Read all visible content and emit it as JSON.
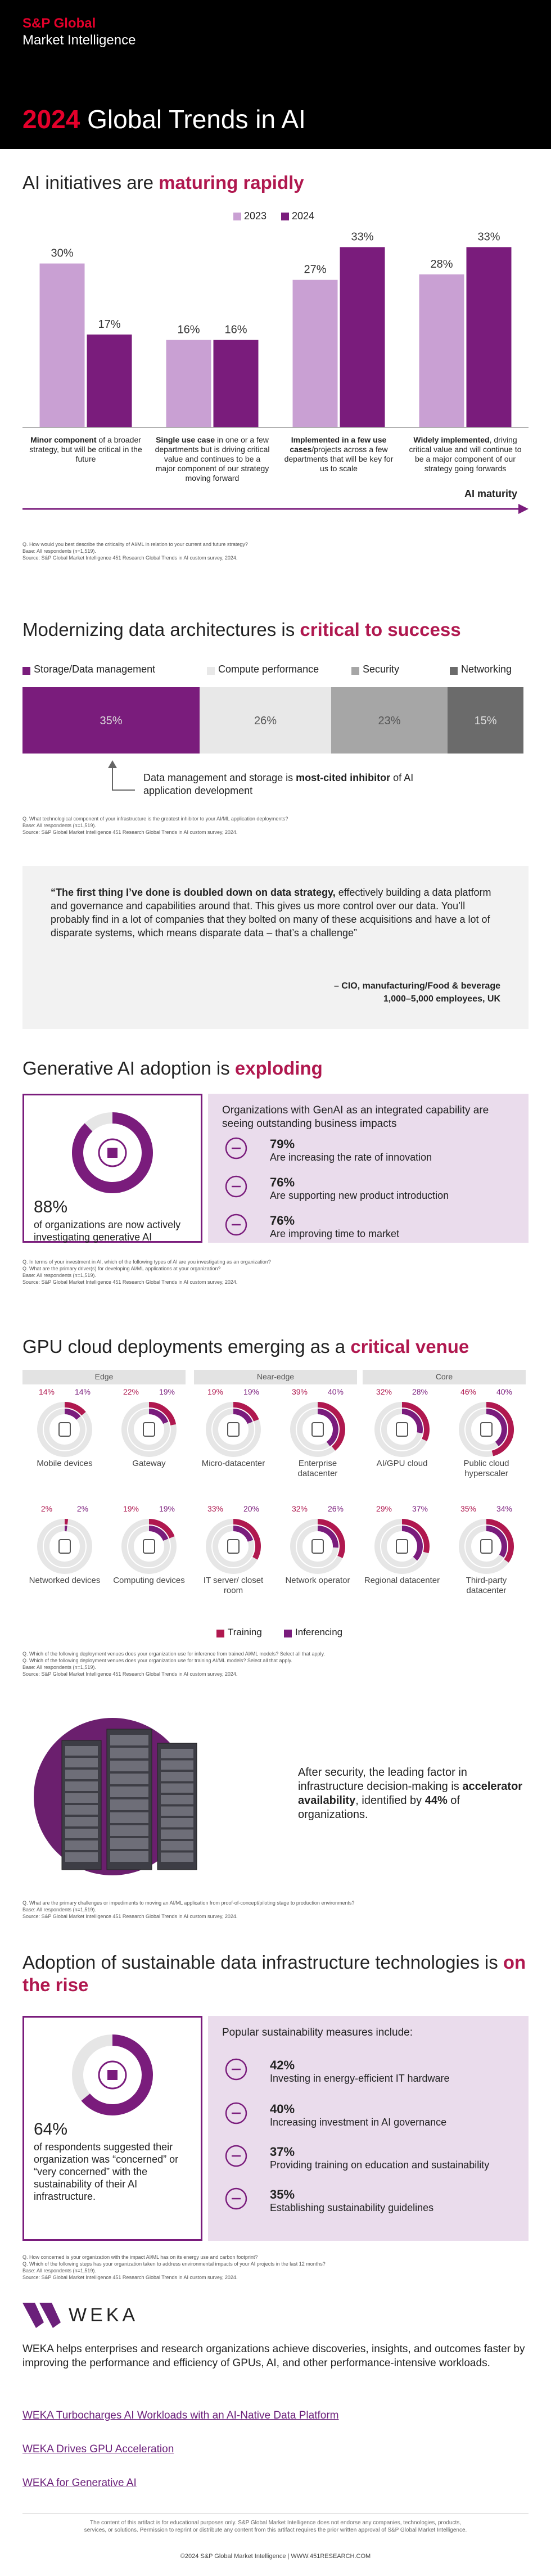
{
  "header": {
    "brand": "S&P Global",
    "subbrand": "Market Intelligence",
    "title_year": "2024",
    "title": "Global Trends in AI"
  },
  "chart_data": [
    {
      "type": "bar",
      "title": "AI initiatives are ",
      "title_highlight": "maturing rapidly",
      "categories": [
        {
          "bold": "Minor component",
          "rest": " of a broader strategy, but will be critical in the future"
        },
        {
          "bold": "Single use case",
          "rest": " in one or a few departments but is driving critical value and continues to be a major component of our strategy moving forward"
        },
        {
          "bold": "Implemented in a few use cases",
          "rest": "/projects across a few departments that will be key for us to scale"
        },
        {
          "bold": "Widely implemented",
          "rest": ", driving critical value and will continue to be a major component of our strategy going forwards"
        }
      ],
      "series": [
        {
          "name": "2023",
          "color": "#c9a0d3",
          "values": [
            30,
            16,
            27,
            28
          ],
          "value_labels": [
            "30%",
            "16%",
            "27%",
            "28%"
          ]
        },
        {
          "name": "2024",
          "color": "#7a1c7c",
          "values": [
            17,
            16,
            33,
            33
          ],
          "value_labels": [
            "17%",
            "16%",
            "33%",
            "33%"
          ]
        }
      ],
      "ylim": [
        0,
        35
      ],
      "axis_label": "AI maturity",
      "notes": [
        "Q. How would you best describe the criticality of AI/ML in relation to your current and future strategy?",
        "Base: All respondents (n=1,519).",
        "Source: S&P Global Market Intelligence 451 Research Global Trends in AI custom survey, 2024."
      ]
    },
    {
      "type": "stacked-bar",
      "title": "Modernizing data architectures is ",
      "title_highlight": "critical to success",
      "series": [
        {
          "name": "Storage/Data management",
          "color": "#7a1c7c",
          "values": [
            35
          ],
          "value_labels": [
            "35%"
          ]
        },
        {
          "name": "Compute performance",
          "color": "#e8e8e8",
          "values": [
            26
          ],
          "value_labels": [
            "26%"
          ]
        },
        {
          "name": "Security",
          "color": "#a6a6a6",
          "values": [
            23
          ],
          "value_labels": [
            "23%"
          ]
        },
        {
          "name": "Networking",
          "color": "#6b6b6b",
          "values": [
            15
          ],
          "value_labels": [
            "15%"
          ]
        }
      ],
      "xlim": [
        0,
        100
      ],
      "annotation": {
        "text": "Data management and storage is ",
        "bold": "most-cited inhibitor",
        "rest": " of AI application development"
      },
      "notes": [
        "Q. What technological component of your infrastructure is the greatest inhibitor to your AI/ML application deployments?",
        "Base: All respondents (n=1,519).",
        "Source: S&P Global Market Intelligence 451 Research Global Trends in AI custom survey, 2024."
      ]
    },
    {
      "type": "donut",
      "title": "GPU cloud deployments emerging as a ",
      "title_highlight": "critical venue",
      "groups": [
        "Edge",
        "Near-edge",
        "Core"
      ],
      "categories": [
        "Mobile devices",
        "Gateway",
        "Micro-datacenter",
        "Enterprise datacenter",
        "AI/GPU cloud",
        "Public cloud hyperscaler",
        "Networked devices",
        "Computing devices",
        "IT server/ closet room",
        "Network operator",
        "Regional datacenter",
        "Third-party datacenter"
      ],
      "series": [
        {
          "name": "Training",
          "color": "#b0184f",
          "values": [
            14,
            22,
            19,
            39,
            32,
            46,
            2,
            19,
            33,
            32,
            29,
            35
          ],
          "value_labels": [
            "14%",
            "22%",
            "19%",
            "39%",
            "32%",
            "46%",
            "2%",
            "19%",
            "33%",
            "32%",
            "29%",
            "35%"
          ]
        },
        {
          "name": "Inferencing",
          "color": "#7a1c7c",
          "values": [
            14,
            19,
            19,
            40,
            28,
            40,
            2,
            19,
            20,
            26,
            37,
            34
          ],
          "value_labels": [
            "14%",
            "19%",
            "19%",
            "40%",
            "28%",
            "40%",
            "2%",
            "19%",
            "20%",
            "26%",
            "37%",
            "34%"
          ]
        }
      ],
      "ylim": [
        0,
        100
      ],
      "notes": [
        "Q. Which of the following deployment venues does your organization use for inference from trained AI/ML models? Select all that apply.",
        "Q. Which of the following deployment venues does your organization use for training AI/ML models? Select all that apply.",
        "Base: All respondents (n=1,519).",
        "Source: S&P Global Market Intelligence 451 Research Global Trends in AI custom survey, 2024."
      ]
    }
  ],
  "quote": {
    "bold": "“The first thing I’ve done is doubled down on data strategy,",
    "text": " effectively building a data platform and governance and capabilities around that. This gives us more control over our data. You’ll probably find in a lot of companies that they bolted on many of these acquisitions and have a lot of disparate systems, which means disparate data – that’s a challenge”",
    "attribution": "– CIO, manufacturing/Food & beverage",
    "detail": "1,000–5,000 employees, UK"
  },
  "genai": {
    "title": "Generative AI adoption is ",
    "title_highlight": "exploding",
    "stat": {
      "value": 88,
      "label": "88%"
    },
    "stat_text": "of organizations are now actively investigating generative AI",
    "panel_title": "Organizations with GenAI as an integrated capability are seeing outstanding business impacts",
    "items": [
      {
        "value": "79%",
        "text": "Are increasing the rate of innovation"
      },
      {
        "value": "76%",
        "text": "Are supporting new product introduction"
      },
      {
        "value": "76%",
        "text": "Are improving time to market"
      }
    ],
    "notes": [
      "Q. In terms of your investment in AI, which of the following types of AI are you investigating as an organization?",
      "Q. What are the primary driver(s) for developing AI/ML applications at your organization?",
      "Base: All respondents (n=1,519).",
      "Source: S&P Global Market Intelligence 451 Research Global Trends in AI custom survey, 2024."
    ]
  },
  "accelerator": {
    "text": "After security, the leading factor in infrastructure decision-making is ",
    "bold": "accelerator availability",
    "text2": ", identified by ",
    "stat": "44%",
    "text3": " of organizations.",
    "notes": [
      "Q. What are the primary challenges or impediments to moving an AI/ML application from proof-of-concept/piloting stage to production environments?",
      "Base: All respondents (n=1,519).",
      "Source: S&P Global Market Intelligence 451 Research Global Trends in AI custom survey, 2024."
    ]
  },
  "sustainability": {
    "title": "Adoption of sustainable data infrastructure technologies is ",
    "title_highlight": "on the rise",
    "stat": {
      "value": 64,
      "label": "64%"
    },
    "stat_text": "of respondents suggested their organization was “concerned” or “very concerned” with the sustainability of their AI infrastructure.",
    "panel_title": "Popular sustainability measures include:",
    "items": [
      {
        "value": "42%",
        "text": "Investing in energy-efficient IT hardware"
      },
      {
        "value": "40%",
        "text": "Increasing investment in AI governance"
      },
      {
        "value": "37%",
        "text": "Providing training on education and sustainability"
      },
      {
        "value": "35%",
        "text": "Establishing sustainability guidelines"
      }
    ],
    "notes": [
      "Q. How concerned is your organization with the impact AI/ML has on its energy use and carbon footprint?",
      "Q. Which of the following steps has your organization taken to address environmental impacts of your AI projects in the last 12 months?",
      "Base: All respondents (n=1,519).",
      "Source: S&P Global Market Intelligence 451 Research Global Trends in AI custom survey, 2024."
    ]
  },
  "weka": {
    "logo": "WEKA",
    "description": "WEKA helps enterprises and research organizations achieve discoveries, insights, and outcomes faster by improving the performance and efficiency of GPUs, AI, and other performance-intensive workloads.",
    "links": [
      "WEKA Turbocharges AI Workloads with an AI-Native Data Platform",
      "WEKA Drives GPU Acceleration",
      "WEKA for Generative AI"
    ],
    "disclaimer": "The content of this artifact is for educational purposes only. S&P Global Market Intelligence does not endorse any companies, technologies, products, services, or solutions. Permission to reprint or distribute any content from this artifact requires the prior written approval of S&P Global Market Intelligence.",
    "copyright": "©2024 S&P Global Market Intelligence | WWW.451RESEARCH.COM"
  }
}
